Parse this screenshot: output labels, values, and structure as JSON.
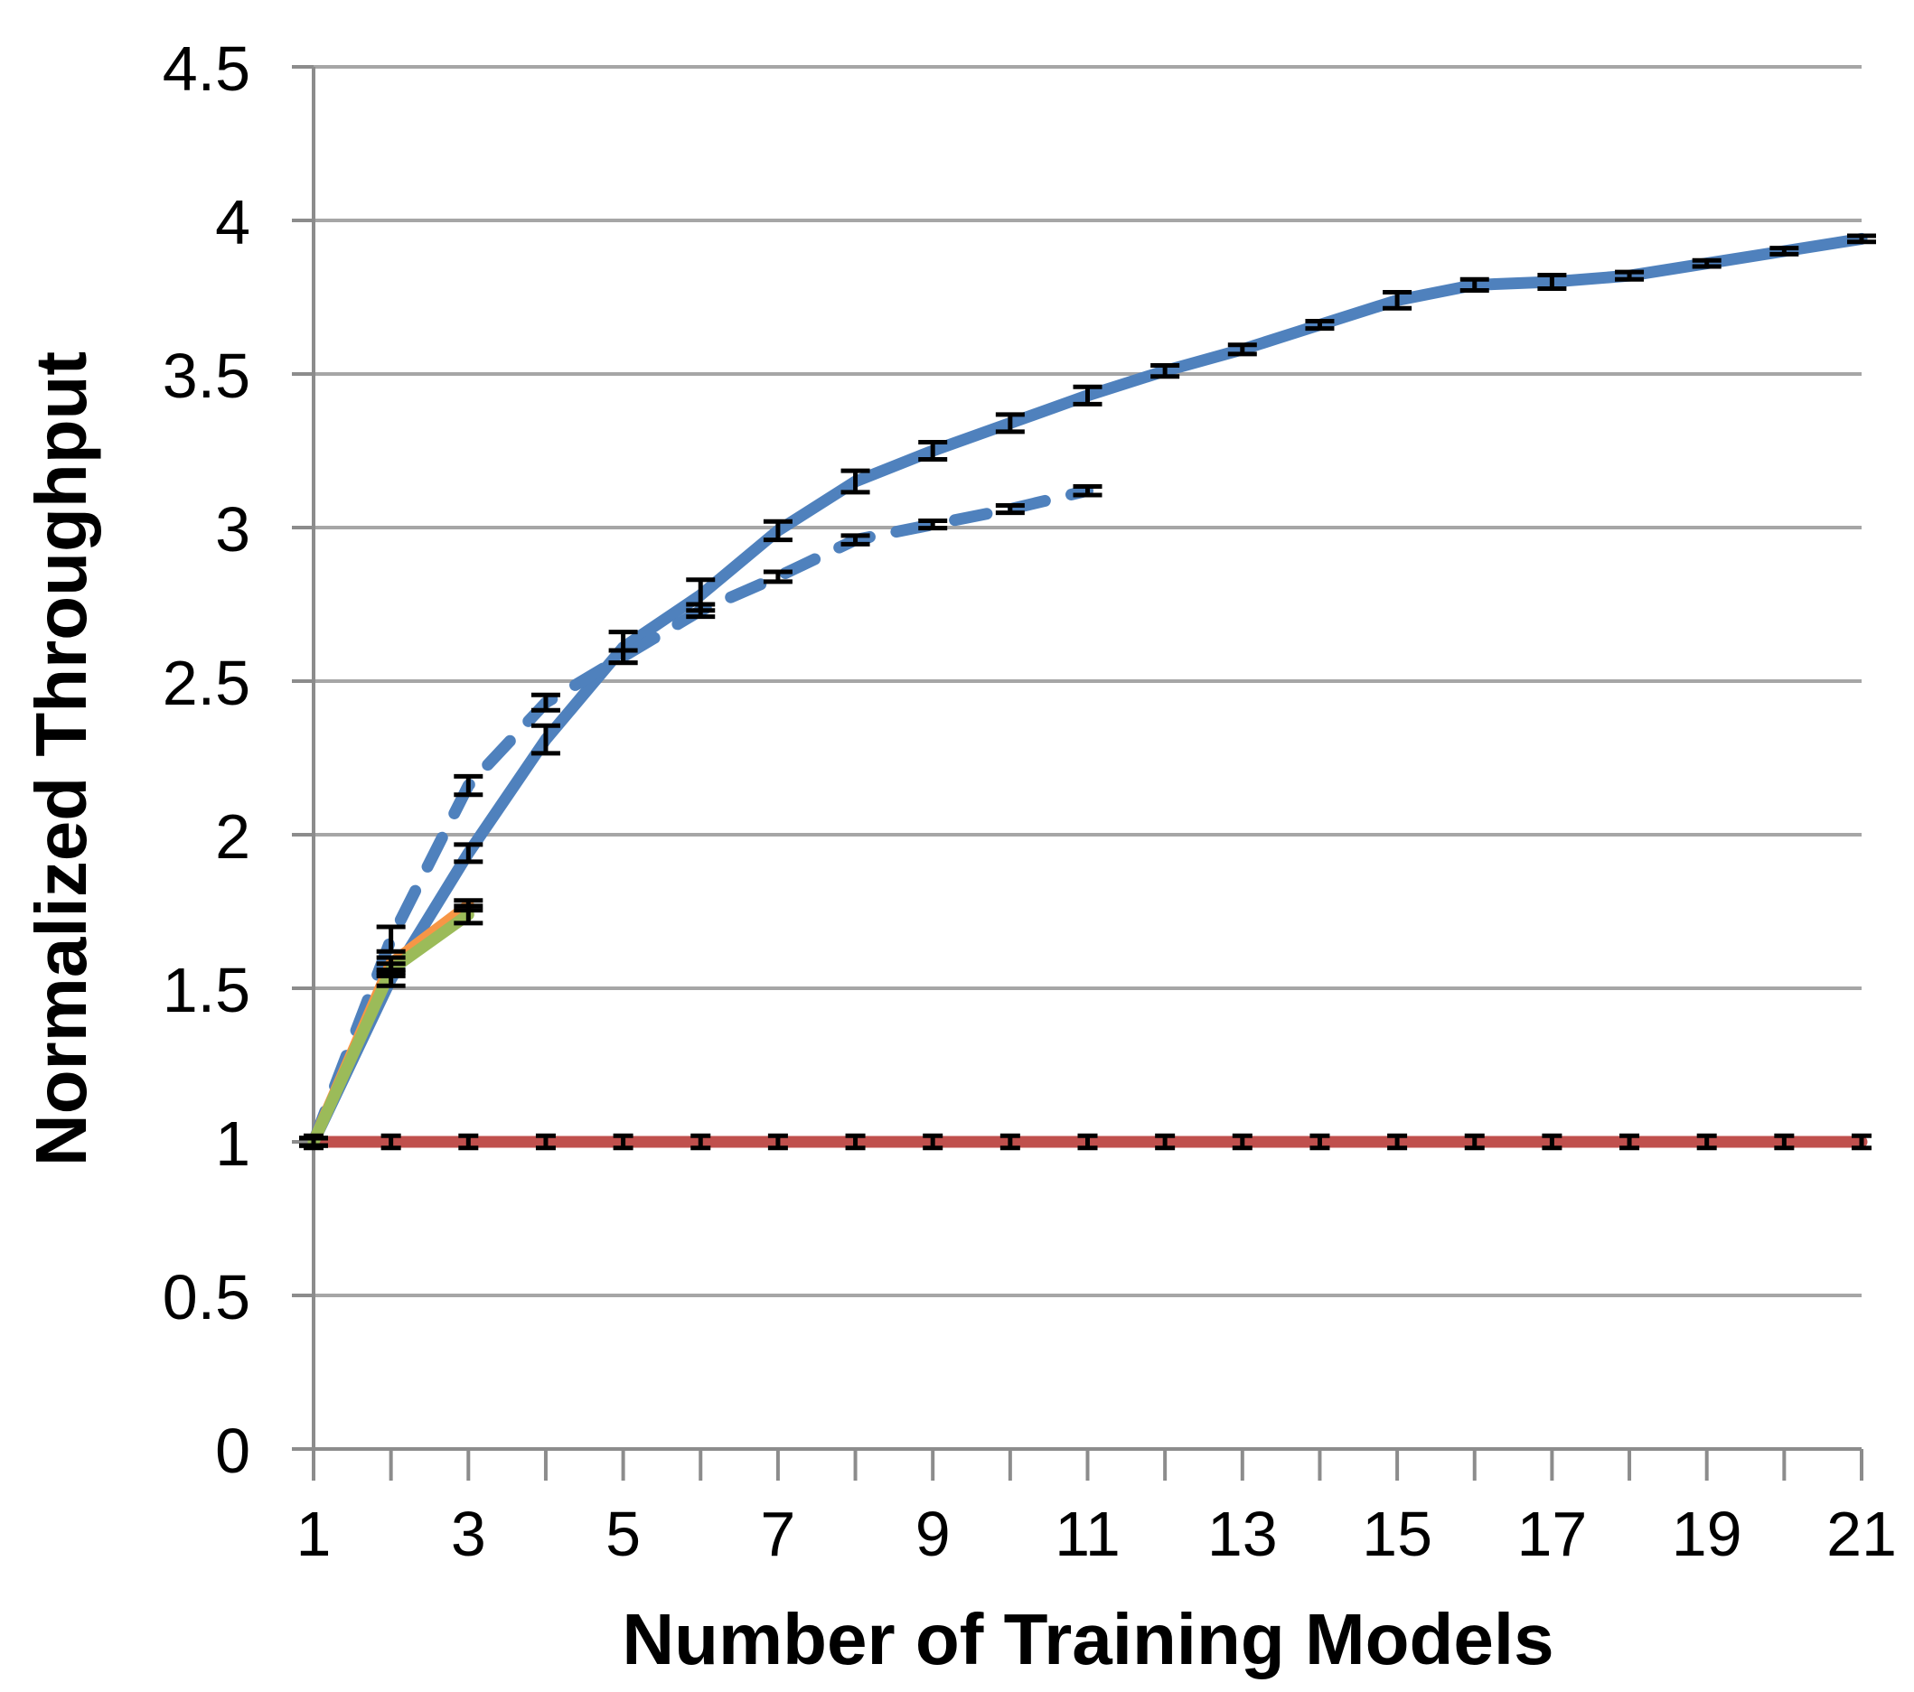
{
  "chart_data": {
    "type": "line",
    "title": "",
    "xlabel": "Number of Training Models",
    "ylabel": "Normalized Throughput",
    "xlim": [
      1,
      21
    ],
    "ylim": [
      0,
      4.5
    ],
    "grid": "horizontal-major",
    "legend_position": "none",
    "x_major_tick_labels": [
      "1",
      "3",
      "5",
      "7",
      "9",
      "11",
      "13",
      "15",
      "17",
      "19",
      "21"
    ],
    "x_major_ticks": [
      1,
      3,
      5,
      7,
      9,
      11,
      13,
      15,
      17,
      19,
      21
    ],
    "x_minor_ticks": [
      2,
      4,
      6,
      8,
      10,
      12,
      14,
      16,
      18,
      20
    ],
    "y_ticks": [
      0,
      0.5,
      1,
      1.5,
      2,
      2.5,
      3,
      3.5,
      4,
      4.5
    ],
    "y_tick_labels": [
      "0",
      "0.5",
      "1",
      "1.5",
      "2",
      "2.5",
      "3",
      "3.5",
      "4",
      "4.5"
    ],
    "colors": {
      "blue": "#4F81BD",
      "red": "#C0504D",
      "green": "#9BBB59",
      "orange": "#F79646",
      "gridline": "#A6A6A6",
      "axis": "#8C8C8C",
      "error_bar": "#000000"
    },
    "series": [
      {
        "name": "red-baseline",
        "color": "#C0504D",
        "style": "solid",
        "x": [
          1,
          2,
          3,
          4,
          5,
          6,
          7,
          8,
          9,
          10,
          11,
          12,
          13,
          14,
          15,
          16,
          17,
          18,
          19,
          20,
          21
        ],
        "y": [
          1.0,
          1.0,
          1.0,
          1.0,
          1.0,
          1.0,
          1.0,
          1.0,
          1.0,
          1.0,
          1.0,
          1.0,
          1.0,
          1.0,
          1.0,
          1.0,
          1.0,
          1.0,
          1.0,
          1.0,
          1.0
        ],
        "err": [
          0.02,
          0.02,
          0.02,
          0.02,
          0.02,
          0.02,
          0.02,
          0.02,
          0.02,
          0.02,
          0.02,
          0.02,
          0.02,
          0.02,
          0.02,
          0.02,
          0.02,
          0.02,
          0.02,
          0.02,
          0.02
        ],
        "cap_half_width": 11
      },
      {
        "name": "blue-solid",
        "color": "#4F81BD",
        "style": "solid",
        "x": [
          1,
          2,
          3,
          4,
          5,
          6,
          7,
          8,
          9,
          10,
          11,
          12,
          13,
          14,
          15,
          16,
          17,
          18,
          19,
          20,
          21
        ],
        "y": [
          1.0,
          1.53,
          1.94,
          2.31,
          2.61,
          2.78,
          2.99,
          3.15,
          3.25,
          3.34,
          3.43,
          3.51,
          3.58,
          3.66,
          3.74,
          3.79,
          3.8,
          3.82,
          3.86,
          3.9,
          3.94
        ],
        "err": [
          0.012,
          0.022,
          0.028,
          0.045,
          0.05,
          0.05,
          0.03,
          0.035,
          0.028,
          0.028,
          0.028,
          0.018,
          0.015,
          0.012,
          0.026,
          0.018,
          0.022,
          0.012,
          0.01,
          0.01,
          0.01
        ],
        "cap_half_width": 16
      },
      {
        "name": "blue-dashed",
        "color": "#4F81BD",
        "style": "dashed",
        "x": [
          1,
          2,
          3,
          4,
          5,
          6,
          7,
          8,
          9,
          10,
          11
        ],
        "y": [
          1.0,
          1.66,
          2.16,
          2.43,
          2.58,
          2.73,
          2.84,
          2.96,
          3.01,
          3.06,
          3.12
        ],
        "err": [
          0.012,
          0.04,
          0.03,
          0.025,
          0.02,
          0.02,
          0.016,
          0.014,
          0.012,
          0.012,
          0.014
        ],
        "cap_half_width": 16
      },
      {
        "name": "orange-solid",
        "color": "#F79646",
        "style": "solid",
        "x": [
          1,
          2,
          3
        ],
        "y": [
          1.0,
          1.58,
          1.77
        ],
        "err": [
          0.012,
          0.02,
          0.016
        ],
        "cap_half_width": 16
      },
      {
        "name": "green-solid",
        "color": "#9BBB59",
        "style": "solid",
        "x": [
          1,
          2,
          3
        ],
        "y": [
          1.0,
          1.56,
          1.74
        ],
        "err": [
          0.012,
          0.02,
          0.028
        ],
        "cap_half_width": 16
      }
    ]
  }
}
